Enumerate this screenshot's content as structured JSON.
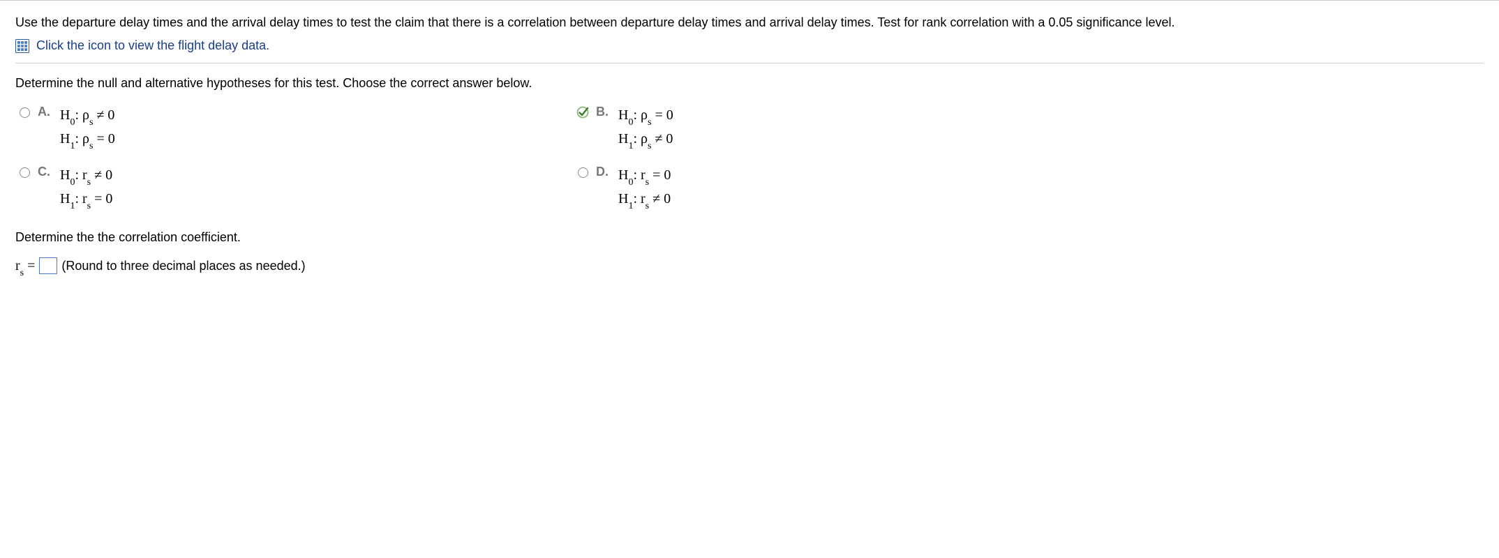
{
  "intro_text": "Use the departure delay times and the arrival delay times to test the claim that there is a correlation between departure delay times and arrival delay times. Test for rank correlation with a 0.05 significance level.",
  "data_link_text": "Click the icon to view the flight delay data.",
  "icon_colors": {
    "border": "#2b5aa8",
    "fill": "#4a7ac8",
    "inner": "#ffffff"
  },
  "question_prompt": "Determine the null and alternative hypotheses for this test. Choose the correct answer below.",
  "choices": {
    "a": {
      "letter": "A.",
      "line1_html": "H<sub>0</sub>: ρ<sub>s</sub> ≠ 0",
      "line2_html": "H<sub>1</sub>: ρ<sub>s</sub> = 0",
      "selected_correct": false
    },
    "b": {
      "letter": "B.",
      "line1_html": "H<sub>0</sub>: ρ<sub>s</sub> = 0",
      "line2_html": "H<sub>1</sub>: ρ<sub>s</sub> ≠ 0",
      "selected_correct": true
    },
    "c": {
      "letter": "C.",
      "line1_html": "H<sub>0</sub>: r<sub>s</sub> ≠ 0",
      "line2_html": "H<sub>1</sub>: r<sub>s</sub> = 0",
      "selected_correct": false
    },
    "d": {
      "letter": "D.",
      "line1_html": "H<sub>0</sub>: r<sub>s</sub> = 0",
      "line2_html": "H<sub>1</sub>: r<sub>s</sub> ≠ 0",
      "selected_correct": false
    }
  },
  "correct_mark_colors": {
    "ring": "#8fb978",
    "check": "#3a7a2a"
  },
  "section2_prompt": "Determine the the correlation coefficient.",
  "coeff_label_html": "r<sub>s</sub> =",
  "coeff_value": "",
  "coeff_hint": "(Round to three decimal places as needed.)",
  "input_border_color": "#4a7ac8"
}
